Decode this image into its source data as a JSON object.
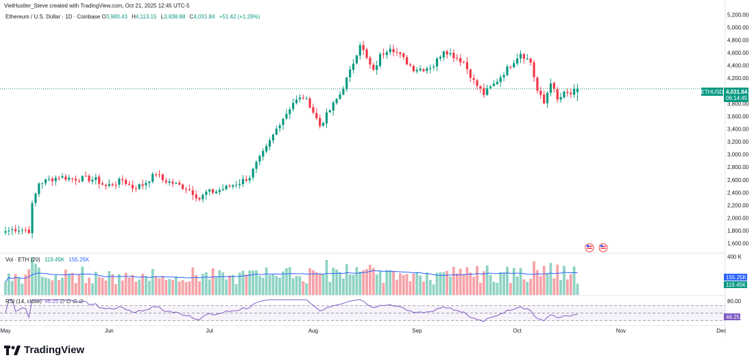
{
  "header": {
    "credit": "VietHustler_Steve created with TradingView.com, Oct 21, 2025 12:45 UTC-5"
  },
  "legend": {
    "symbol": "Ethereum / U.S. Dollar · 1D · Coinbase",
    "open_label": "O",
    "open": "3,980.43",
    "high_label": "H",
    "high": "4,113.15",
    "low_label": "L",
    "low": "3,838.88",
    "close_label": "C",
    "close": "4,031.84",
    "change": "+51.42 (+1.29%)"
  },
  "price_tag": {
    "symbol": "ETHUSD",
    "price": "4,031.84",
    "countdown": "06:14:45"
  },
  "volume": {
    "label": "Vol · ETH (20)",
    "value1": "119.45K",
    "value2": "155.25K",
    "axis_label": "400 K",
    "tag_ma": "155.25K",
    "tag_vol": "119.45K"
  },
  "rsi": {
    "label": "RSI (14, close)",
    "value": "46.25",
    "placeholders": "∅ ∅ ∅ ∅",
    "axis_label": "80.00",
    "tag": "46.25"
  },
  "brand": {
    "name": "TradingView"
  },
  "colors": {
    "up": "#089981",
    "down": "#f23645",
    "vol_up": "#8fd3c4",
    "vol_down": "#f5a3a8",
    "ma": "#2962ff",
    "rsi": "#7e57c2"
  },
  "chart_data": {
    "type": "candlestick",
    "y_axis_ticks": [
      "5,200.00",
      "5,000.00",
      "4,800.00",
      "4,600.00",
      "4,400.00",
      "4,200.00",
      "4,000.00",
      "3,800.00",
      "3,600.00",
      "3,400.00",
      "3,200.00",
      "3,000.00",
      "2,800.00",
      "2,600.00",
      "2,400.00",
      "2,200.00",
      "2,000.00",
      "1,800.00",
      "1,600.00"
    ],
    "x_axis_ticks": [
      "May",
      "Jun",
      "Jul",
      "Aug",
      "Sep",
      "Oct",
      "Nov",
      "Dec"
    ],
    "ylim": [
      1500,
      5300
    ],
    "last_close": 4031.84,
    "start_date": "2025-05-01",
    "ohlc_anchors_close": [
      [
        0,
        1790
      ],
      [
        3,
        1830
      ],
      [
        7,
        1800
      ],
      [
        8,
        2200
      ],
      [
        10,
        2550
      ],
      [
        13,
        2600
      ],
      [
        16,
        2650
      ],
      [
        20,
        2620
      ],
      [
        24,
        2620
      ],
      [
        27,
        2600
      ],
      [
        30,
        2500
      ],
      [
        33,
        2550
      ],
      [
        35,
        2600
      ],
      [
        38,
        2480
      ],
      [
        41,
        2520
      ],
      [
        45,
        2700
      ],
      [
        47,
        2600
      ],
      [
        50,
        2550
      ],
      [
        55,
        2450
      ],
      [
        58,
        2300
      ],
      [
        60,
        2400
      ],
      [
        63,
        2420
      ],
      [
        67,
        2500
      ],
      [
        70,
        2560
      ],
      [
        73,
        2650
      ],
      [
        75,
        2850
      ],
      [
        78,
        3100
      ],
      [
        82,
        3500
      ],
      [
        84,
        3650
      ],
      [
        86,
        3820
      ],
      [
        89,
        3900
      ],
      [
        91,
        3780
      ],
      [
        94,
        3450
      ],
      [
        97,
        3700
      ],
      [
        100,
        3950
      ],
      [
        103,
        4300
      ],
      [
        106,
        4750
      ],
      [
        108,
        4500
      ],
      [
        110,
        4300
      ],
      [
        112,
        4550
      ],
      [
        115,
        4700
      ],
      [
        118,
        4550
      ],
      [
        122,
        4350
      ],
      [
        125,
        4350
      ],
      [
        128,
        4400
      ],
      [
        131,
        4650
      ],
      [
        134,
        4550
      ],
      [
        137,
        4450
      ],
      [
        140,
        4150
      ],
      [
        143,
        3950
      ],
      [
        146,
        4100
      ],
      [
        150,
        4350
      ],
      [
        154,
        4600
      ],
      [
        157,
        4450
      ],
      [
        159,
        4000
      ],
      [
        161,
        3800
      ],
      [
        163,
        4150
      ],
      [
        165,
        3850
      ],
      [
        167,
        3950
      ],
      [
        169,
        3950
      ],
      [
        171,
        4031.84
      ]
    ],
    "rsi_ylim": [
      20,
      85
    ],
    "rsi_levels": [
      70,
      50,
      30
    ],
    "volume_max": 400000
  }
}
